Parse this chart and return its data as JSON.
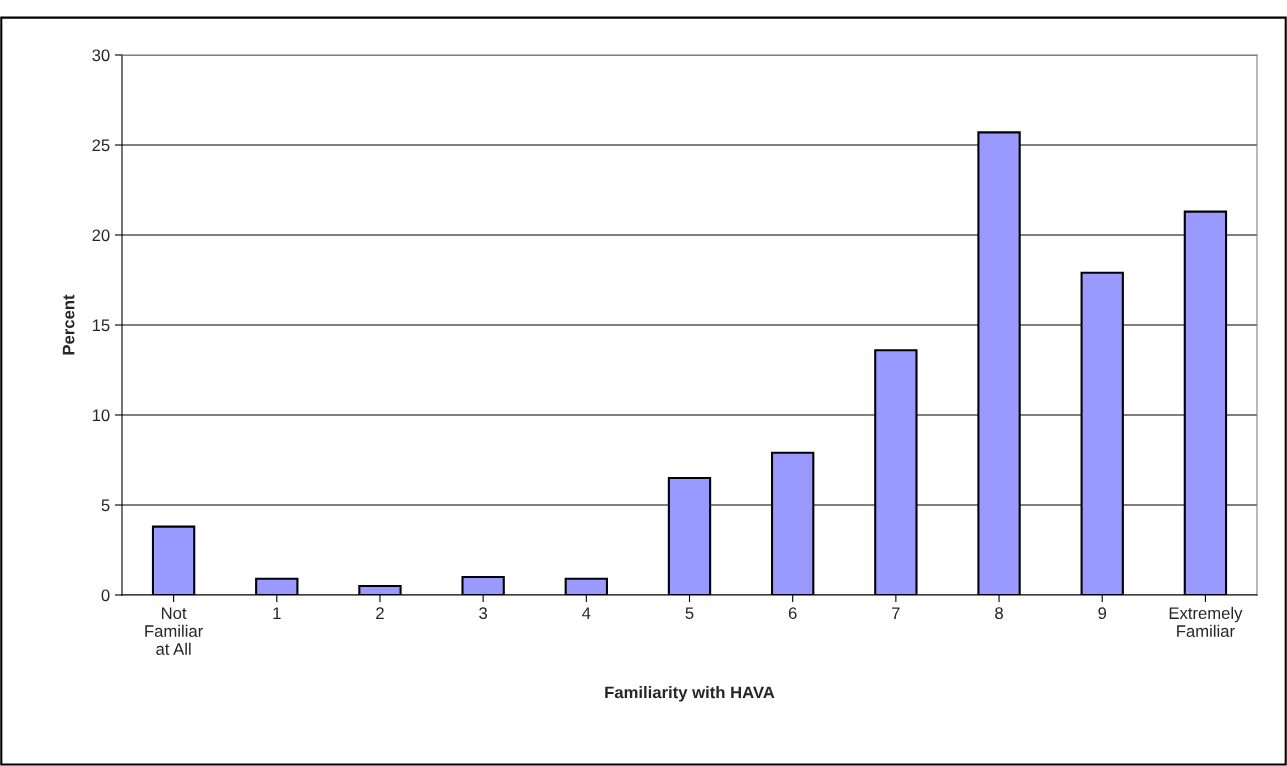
{
  "chart_data": {
    "type": "bar",
    "xlabel": "Familiarity with HAVA",
    "ylabel": "Percent",
    "categories": [
      "Not\nFamiliar\nat All",
      "1",
      "2",
      "3",
      "4",
      "5",
      "6",
      "7",
      "8",
      "9",
      "Extremely\nFamiliar"
    ],
    "values": [
      3.8,
      0.9,
      0.5,
      1.0,
      0.9,
      6.5,
      7.9,
      13.6,
      25.7,
      17.9,
      21.3
    ],
    "color": "#9999ff",
    "ylim": [
      0,
      30
    ],
    "yticks": [
      0,
      5,
      10,
      15,
      20,
      25,
      30
    ],
    "grid": "y"
  }
}
